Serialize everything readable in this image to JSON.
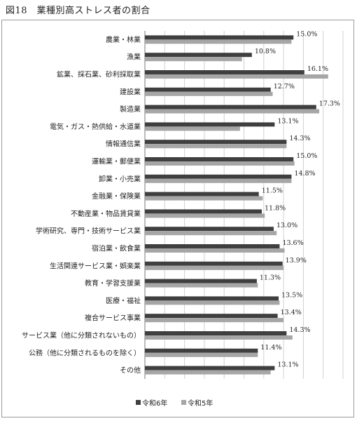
{
  "page": {
    "title": "図18　業種別高ストレス者の割合"
  },
  "colors": {
    "series1": "#3f3f3f",
    "series2": "#a6a6a6",
    "grid": "#d0d0d0"
  },
  "chart_data": {
    "type": "bar",
    "orientation": "horizontal",
    "categories": [
      "農業・林業",
      "漁業",
      "鉱業、採石業、砂利採取業",
      "建設業",
      "製造業",
      "電気・ガス・熱供給・水道業",
      "情報通信業",
      "運輸業・郵便業",
      "卸業・小売業",
      "金融業・保険業",
      "不動産業・物品賃貸業",
      "学術研究、専門・技術サービス業",
      "宿泊業・飲食業",
      "生活関連サービス業・娯楽業",
      "教育・学習支援業",
      "医療・福祉",
      "複合サービス事業",
      "サービス業（他に分類されないもの）",
      "公務（他に分類されるものを除く）",
      "その他"
    ],
    "series": [
      {
        "name": "令和6年",
        "values": [
          15.0,
          10.8,
          16.1,
          12.7,
          17.3,
          13.1,
          14.3,
          15.0,
          14.8,
          11.5,
          11.8,
          13.0,
          13.6,
          13.9,
          11.3,
          13.5,
          13.4,
          14.3,
          11.4,
          13.1
        ]
      },
      {
        "name": "令和5年",
        "values": [
          14.8,
          9.8,
          18.5,
          12.9,
          17.6,
          9.6,
          14.3,
          15.1,
          14.8,
          11.9,
          12.1,
          13.3,
          14.1,
          14.0,
          11.4,
          13.6,
          14.0,
          14.9,
          11.4,
          12.7
        ]
      }
    ],
    "data_labels": [
      "15.0%",
      "10.8%",
      "16.1%",
      "12.7%",
      "17.3%",
      "13.1%",
      "14.3%",
      "15.0%",
      "14.8%",
      "11.5%",
      "11.8%",
      "13.0%",
      "13.6%",
      "13.9%",
      "11.3%",
      "13.5%",
      "13.4%",
      "14.3%",
      "11.4%",
      "13.1%"
    ],
    "xlim": [
      0,
      20
    ],
    "grid": true,
    "legend_position": "bottom"
  }
}
